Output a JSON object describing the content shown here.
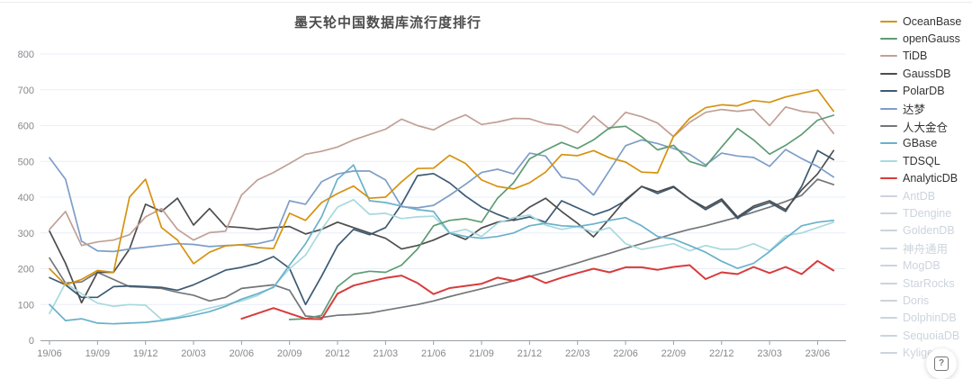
{
  "chart_data": {
    "type": "line",
    "title": "墨天轮中国数据库流行度排行",
    "grid": true,
    "legend_position": "right",
    "ylim": [
      0,
      800
    ],
    "yticks": [
      0,
      100,
      200,
      300,
      400,
      500,
      600,
      700,
      800
    ],
    "x_tick_labels": [
      "19/06",
      "19/09",
      "19/12",
      "20/03",
      "20/06",
      "20/09",
      "20/12",
      "21/03",
      "21/06",
      "21/09",
      "21/12",
      "22/03",
      "22/06",
      "22/09",
      "22/12",
      "23/03",
      "23/06"
    ],
    "months": [
      "19/06",
      "19/07",
      "19/08",
      "19/09",
      "19/10",
      "19/11",
      "19/12",
      "20/01",
      "20/02",
      "20/03",
      "20/04",
      "20/05",
      "20/06",
      "20/07",
      "20/08",
      "20/09",
      "20/10",
      "20/11",
      "20/12",
      "21/01",
      "21/02",
      "21/03",
      "21/04",
      "21/05",
      "21/06",
      "21/07",
      "21/08",
      "21/09",
      "21/10",
      "21/11",
      "21/12",
      "22/01",
      "22/02",
      "22/03",
      "22/04",
      "22/05",
      "22/06",
      "22/07",
      "22/08",
      "22/09",
      "22/10",
      "22/11",
      "22/12",
      "23/01",
      "23/02",
      "23/03",
      "23/04",
      "23/05",
      "23/06",
      "23/07"
    ],
    "series": [
      {
        "name": "OceanBase",
        "color": "#d6920f",
        "disabled": false,
        "z": 9,
        "values": [
          200,
          155,
          170,
          195,
          190,
          400,
          450,
          315,
          280,
          214,
          246,
          264,
          267,
          259,
          256,
          355,
          335,
          385,
          410,
          431,
          397,
          400,
          443,
          480,
          481,
          517,
          494,
          448,
          430,
          423,
          440,
          470,
          519,
          516,
          530,
          510,
          498,
          470,
          468,
          570,
          620,
          650,
          658,
          655,
          670,
          665,
          680,
          690,
          700,
          640
        ]
      },
      {
        "name": "openGauss",
        "color": "#5e9c74",
        "disabled": false,
        "z": 8,
        "values": [
          null,
          null,
          null,
          null,
          null,
          null,
          null,
          null,
          null,
          null,
          null,
          null,
          null,
          null,
          null,
          58,
          60,
          70,
          150,
          185,
          193,
          190,
          210,
          255,
          320,
          335,
          340,
          330,
          397,
          440,
          507,
          531,
          553,
          536,
          560,
          594,
          598,
          569,
          532,
          545,
          500,
          486,
          540,
          592,
          560,
          520,
          545,
          575,
          615,
          629
        ]
      },
      {
        "name": "TiDB",
        "color": "#c1a096",
        "disabled": false,
        "z": 7,
        "values": [
          310,
          360,
          265,
          275,
          280,
          295,
          345,
          368,
          310,
          280,
          301,
          305,
          406,
          448,
          469,
          494,
          520,
          528,
          540,
          560,
          575,
          590,
          618,
          600,
          588,
          612,
          630,
          603,
          610,
          620,
          619,
          605,
          600,
          580,
          627,
          590,
          637,
          625,
          607,
          569,
          609,
          637,
          645,
          640,
          645,
          600,
          652,
          640,
          635,
          578
        ]
      },
      {
        "name": "GaussDB",
        "color": "#4d4d4d",
        "disabled": false,
        "z": 3,
        "values": [
          305,
          215,
          105,
          190,
          190,
          255,
          380,
          360,
          397,
          322,
          368,
          318,
          315,
          310,
          315,
          318,
          297,
          310,
          330,
          315,
          300,
          285,
          255,
          265,
          280,
          300,
          282,
          314,
          330,
          337,
          372,
          397,
          360,
          327,
          289,
          340,
          393,
          430,
          415,
          430,
          395,
          370,
          395,
          345,
          375,
          390,
          365,
          420,
          465,
          530
        ]
      },
      {
        "name": "PolarDB",
        "color": "#3d5a73",
        "disabled": false,
        "z": 2,
        "values": [
          175,
          155,
          120,
          120,
          150,
          152,
          150,
          148,
          140,
          155,
          175,
          196,
          204,
          215,
          234,
          201,
          100,
          179,
          264,
          310,
          295,
          315,
          380,
          460,
          466,
          440,
          403,
          372,
          352,
          335,
          345,
          330,
          390,
          370,
          350,
          365,
          390,
          430,
          410,
          428,
          395,
          365,
          390,
          340,
          370,
          385,
          360,
          430,
          530,
          505
        ]
      },
      {
        "name": "达梦",
        "color": "#7e9ec7",
        "disabled": false,
        "z": 6,
        "values": [
          510,
          450,
          277,
          250,
          248,
          255,
          260,
          265,
          270,
          268,
          262,
          265,
          267,
          270,
          280,
          390,
          380,
          443,
          465,
          473,
          473,
          448,
          373,
          370,
          377,
          405,
          436,
          469,
          478,
          465,
          523,
          515,
          456,
          448,
          406,
          475,
          544,
          560,
          550,
          536,
          520,
          490,
          523,
          515,
          511,
          486,
          533,
          508,
          486,
          456
        ]
      },
      {
        "name": "人大金仓",
        "color": "#737679",
        "disabled": false,
        "z": 1,
        "values": [
          230,
          160,
          163,
          190,
          170,
          150,
          148,
          145,
          134,
          126,
          110,
          120,
          145,
          150,
          155,
          140,
          68,
          64,
          70,
          72,
          76,
          84,
          92,
          100,
          110,
          122,
          133,
          144,
          155,
          166,
          178,
          190,
          203,
          216,
          230,
          243,
          257,
          270,
          284,
          298,
          310,
          320,
          332,
          344,
          358,
          372,
          388,
          405,
          450,
          435
        ]
      },
      {
        "name": "GBase",
        "color": "#68b1cb",
        "disabled": false,
        "z": 5,
        "values": [
          100,
          55,
          60,
          48,
          46,
          48,
          50,
          55,
          62,
          70,
          80,
          95,
          115,
          130,
          148,
          210,
          270,
          345,
          450,
          490,
          390,
          385,
          375,
          365,
          360,
          300,
          290,
          285,
          290,
          300,
          320,
          327,
          320,
          318,
          325,
          335,
          343,
          320,
          290,
          283,
          265,
          246,
          221,
          201,
          215,
          248,
          285,
          320,
          330,
          335
        ]
      },
      {
        "name": "TDSQL",
        "color": "#a8d9de",
        "disabled": false,
        "z": 4,
        "values": [
          75,
          160,
          130,
          104,
          95,
          100,
          98,
          58,
          65,
          78,
          90,
          100,
          110,
          125,
          150,
          200,
          238,
          310,
          372,
          393,
          352,
          355,
          340,
          345,
          347,
          300,
          310,
          290,
          327,
          343,
          350,
          322,
          310,
          318,
          302,
          315,
          270,
          254,
          262,
          270,
          250,
          265,
          254,
          255,
          270,
          250,
          292,
          300,
          315,
          330
        ]
      },
      {
        "name": "AnalyticDB",
        "color": "#d83b3b",
        "disabled": false,
        "z": 10,
        "values": [
          null,
          null,
          null,
          null,
          null,
          null,
          null,
          null,
          null,
          null,
          null,
          null,
          60,
          75,
          90,
          75,
          60,
          59,
          130,
          153,
          164,
          174,
          181,
          160,
          129,
          146,
          152,
          158,
          175,
          166,
          180,
          160,
          175,
          188,
          200,
          190,
          204,
          204,
          197,
          205,
          210,
          171,
          190,
          185,
          205,
          188,
          205,
          185,
          222,
          195
        ]
      },
      {
        "name": "AntDB",
        "color": "#ccd4dd",
        "disabled": true,
        "z": 0,
        "values": null
      },
      {
        "name": "TDengine",
        "color": "#ccd4dd",
        "disabled": true,
        "z": 0,
        "values": null
      },
      {
        "name": "GoldenDB",
        "color": "#ccd4dd",
        "disabled": true,
        "z": 0,
        "values": null
      },
      {
        "name": "神舟通用",
        "color": "#ccd4dd",
        "disabled": true,
        "z": 0,
        "values": null
      },
      {
        "name": "MogDB",
        "color": "#ccd4dd",
        "disabled": true,
        "z": 0,
        "values": null
      },
      {
        "name": "StarRocks",
        "color": "#ccd4dd",
        "disabled": true,
        "z": 0,
        "values": null
      },
      {
        "name": "Doris",
        "color": "#ccd4dd",
        "disabled": true,
        "z": 0,
        "values": null
      },
      {
        "name": "DolphinDB",
        "color": "#ccd4dd",
        "disabled": true,
        "z": 0,
        "values": null
      },
      {
        "name": "SequoiaDB",
        "color": "#ccd4dd",
        "disabled": true,
        "z": 0,
        "values": null
      },
      {
        "name": "Kyligence",
        "color": "#ccd4dd",
        "disabled": true,
        "z": 0,
        "values": null
      }
    ],
    "colors": {
      "grid_line": "#e8eff8",
      "axis_line": "#9b9ea3",
      "axis_label": "#85888c",
      "title_text": "#4c4c4c",
      "legend_active_text": "#333333",
      "legend_disabled": "#ccd4dd"
    }
  },
  "help_button": {
    "glyph": "?"
  }
}
